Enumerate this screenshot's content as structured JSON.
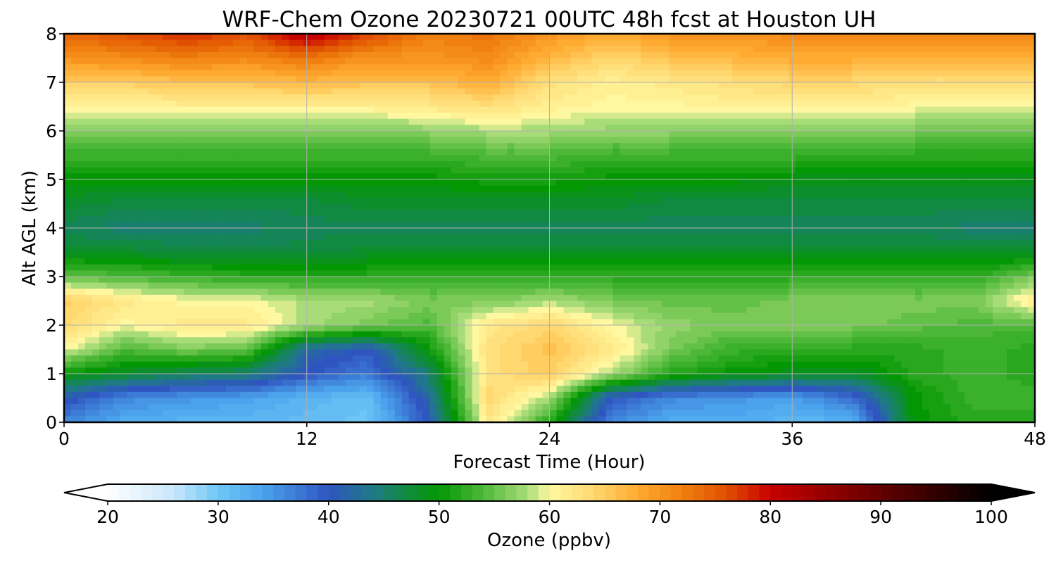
{
  "chart_data": {
    "type": "heatmap",
    "title": "WRF-Chem Ozone  20230721 00UTC 48h fcst at Houston UH",
    "xlabel": "Forecast Time (Hour)",
    "ylabel": "Alt AGL (km)",
    "xlim": [
      0,
      48
    ],
    "ylim": [
      0,
      8
    ],
    "xticks": [
      0,
      12,
      24,
      36,
      48
    ],
    "yticks": [
      0,
      1,
      2,
      3,
      4,
      5,
      6,
      7,
      8
    ],
    "grid": true,
    "colorbar": {
      "label": "Ozone  (ppbv)",
      "range": [
        20,
        100
      ],
      "ticks": [
        20,
        30,
        40,
        50,
        60,
        70,
        80,
        90,
        100
      ],
      "extend": "both",
      "orientation": "horizontal",
      "placement": "bottom",
      "stops": [
        {
          "v": 20,
          "c": "#ffffff"
        },
        {
          "v": 26,
          "c": "#c8e6fa"
        },
        {
          "v": 30,
          "c": "#6ec6f6"
        },
        {
          "v": 34,
          "c": "#4aa3ec"
        },
        {
          "v": 40,
          "c": "#2f55c0"
        },
        {
          "v": 44,
          "c": "#1f7a86"
        },
        {
          "v": 47,
          "c": "#108a40"
        },
        {
          "v": 50,
          "c": "#049704"
        },
        {
          "v": 54,
          "c": "#4db838"
        },
        {
          "v": 58,
          "c": "#a8dc78"
        },
        {
          "v": 60,
          "c": "#fff8a0"
        },
        {
          "v": 64,
          "c": "#ffd870"
        },
        {
          "v": 68,
          "c": "#ffaa30"
        },
        {
          "v": 72,
          "c": "#f08010"
        },
        {
          "v": 76,
          "c": "#e05000"
        },
        {
          "v": 80,
          "c": "#c80000"
        },
        {
          "v": 86,
          "c": "#8c0000"
        },
        {
          "v": 92,
          "c": "#500000"
        },
        {
          "v": 100,
          "c": "#000000"
        }
      ]
    },
    "x": [
      0,
      3,
      6,
      9,
      12,
      15,
      18,
      21,
      24,
      27,
      30,
      33,
      36,
      39,
      42,
      45,
      48
    ],
    "y": [
      0,
      0.5,
      1,
      1.5,
      2,
      2.5,
      3,
      3.5,
      4,
      4.5,
      5,
      5.5,
      6,
      6.5,
      7,
      7.5,
      8
    ],
    "z": [
      [
        36,
        33,
        32,
        32,
        31,
        30,
        40,
        62,
        52,
        36,
        33,
        33,
        32,
        32,
        50,
        52,
        52
      ],
      [
        41,
        36,
        35,
        34,
        32,
        31,
        42,
        64,
        58,
        40,
        36,
        35,
        34,
        38,
        50,
        53,
        53
      ],
      [
        50,
        48,
        46,
        45,
        40,
        37,
        45,
        63,
        65,
        58,
        52,
        50,
        49,
        48,
        52,
        53,
        52
      ],
      [
        60,
        54,
        56,
        55,
        42,
        40,
        50,
        63,
        66,
        62,
        56,
        53,
        52,
        52,
        52,
        53,
        52
      ],
      [
        64,
        60,
        62,
        62,
        58,
        56,
        54,
        62,
        64,
        60,
        57,
        56,
        56,
        56,
        55,
        54,
        54
      ],
      [
        65,
        62,
        60,
        60,
        58,
        58,
        56,
        56,
        58,
        56,
        55,
        55,
        56,
        56,
        56,
        56,
        62
      ],
      [
        55,
        54,
        53,
        52,
        52,
        52,
        52,
        52,
        52,
        52,
        52,
        52,
        52,
        52,
        52,
        52,
        56
      ],
      [
        48,
        48,
        47,
        47,
        47,
        48,
        48,
        48,
        48,
        48,
        48,
        48,
        48,
        48,
        48,
        48,
        48
      ],
      [
        46,
        45,
        45,
        45,
        46,
        46,
        46,
        46,
        46,
        46,
        46,
        46,
        46,
        46,
        46,
        45,
        45
      ],
      [
        48,
        47,
        47,
        47,
        47,
        48,
        48,
        48,
        48,
        48,
        47,
        47,
        47,
        47,
        47,
        47,
        47
      ],
      [
        50,
        50,
        50,
        50,
        50,
        50,
        50,
        51,
        51,
        50,
        50,
        50,
        49,
        49,
        49,
        49,
        49
      ],
      [
        53,
        53,
        53,
        53,
        53,
        53,
        53,
        54,
        54,
        53,
        53,
        53,
        53,
        52,
        52,
        52,
        52
      ],
      [
        56,
        56,
        56,
        56,
        56,
        56,
        57,
        58,
        58,
        57,
        57,
        56,
        56,
        56,
        56,
        55,
        55
      ],
      [
        60,
        60,
        61,
        61,
        61,
        61,
        62,
        63,
        61,
        60,
        60,
        61,
        61,
        61,
        60,
        60,
        60
      ],
      [
        65,
        65,
        66,
        66,
        67,
        66,
        66,
        68,
        63,
        61,
        62,
        63,
        64,
        64,
        63,
        63,
        63
      ],
      [
        70,
        71,
        72,
        71,
        73,
        70,
        70,
        71,
        67,
        64,
        66,
        67,
        68,
        68,
        67,
        67,
        67
      ],
      [
        74,
        76,
        78,
        76,
        82,
        77,
        72,
        73,
        70,
        68,
        70,
        70,
        71,
        72,
        71,
        71,
        71
      ]
    ]
  }
}
